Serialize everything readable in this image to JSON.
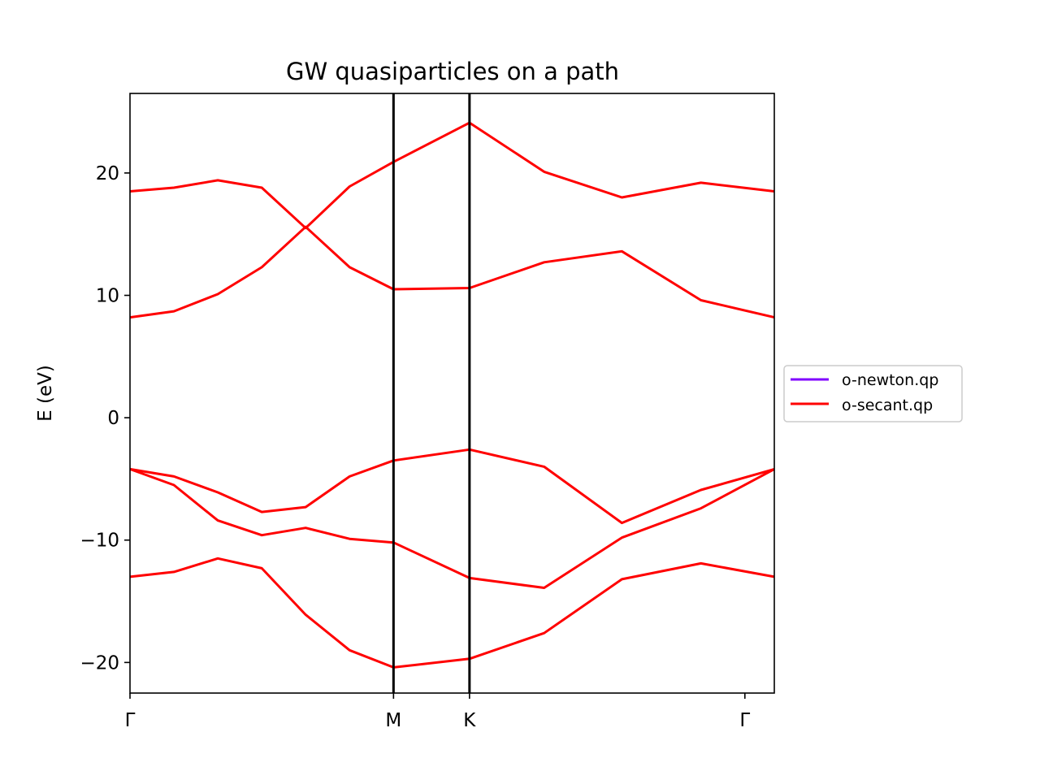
{
  "chart_data": {
    "type": "line",
    "title": "GW quasiparticles on a path",
    "xlabel": "",
    "ylabel": "E (eV)",
    "ylim": [
      -22.5,
      26.5
    ],
    "xlim": [
      0,
      14.67
    ],
    "grid": false,
    "legend_position": "center-right, outside plot",
    "yticks": [
      {
        "value": -20,
        "label": "−20"
      },
      {
        "value": -10,
        "label": "−10"
      },
      {
        "value": 0,
        "label": "0"
      },
      {
        "value": 10,
        "label": "10"
      },
      {
        "value": 20,
        "label": "20"
      }
    ],
    "xticks": [
      {
        "value": 0,
        "label": "Γ"
      },
      {
        "value": 6,
        "label": "M"
      },
      {
        "value": 7.73,
        "label": "K"
      },
      {
        "value": 14,
        "label": "Γ"
      }
    ],
    "vlines": [
      6,
      7.73
    ],
    "series": [
      {
        "name": "o-newton.qp",
        "color": "#8000ff",
        "bands": []
      },
      {
        "name": "o-secant.qp",
        "color": "#ff0000",
        "bands": [
          {
            "x": [
              0,
              1,
              2,
              3,
              4,
              5,
              6,
              7.73,
              9.43,
              11.2,
              13,
              14.67
            ],
            "y": [
              -13.0,
              -12.6,
              -11.5,
              -12.3,
              -16.1,
              -19.0,
              -20.4,
              -19.7,
              -17.6,
              -13.2,
              -11.9,
              -13.0
            ]
          },
          {
            "x": [
              0,
              1,
              2,
              3,
              4,
              5,
              6,
              7.73,
              9.43,
              11.2,
              13,
              14.67
            ],
            "y": [
              -4.2,
              -5.5,
              -8.4,
              -9.6,
              -9.0,
              -9.9,
              -10.2,
              -13.1,
              -13.9,
              -9.8,
              -7.4,
              -4.2
            ]
          },
          {
            "x": [
              0,
              1,
              2,
              3,
              4,
              5,
              6,
              7.73,
              9.43,
              11.2,
              13,
              14.67
            ],
            "y": [
              -4.2,
              -4.8,
              -6.1,
              -7.7,
              -7.3,
              -4.8,
              -3.5,
              -2.6,
              -4.0,
              -8.6,
              -5.9,
              -4.2
            ]
          },
          {
            "x": [
              0,
              1,
              2,
              3,
              4,
              5,
              6,
              7.73,
              9.43,
              11.2,
              13,
              14.67
            ],
            "y": [
              8.2,
              8.7,
              10.1,
              12.3,
              15.6,
              12.3,
              10.5,
              10.6,
              12.7,
              13.6,
              9.6,
              8.2
            ]
          },
          {
            "x": [
              0,
              1,
              2,
              3,
              4,
              5,
              6,
              7.73,
              9.43,
              11.2,
              13,
              14.67
            ],
            "y": [
              18.5,
              18.8,
              19.4,
              18.8,
              15.5,
              18.9,
              20.9,
              24.1,
              20.1,
              18.0,
              19.2,
              18.5
            ]
          }
        ]
      }
    ]
  }
}
